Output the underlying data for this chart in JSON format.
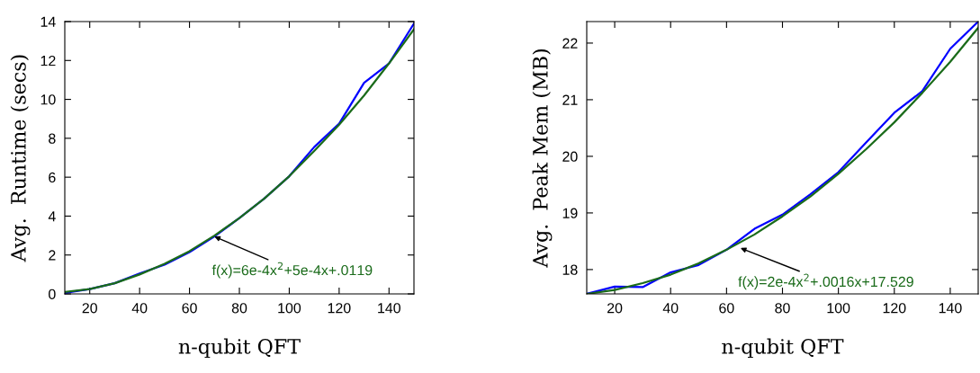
{
  "chart_data": [
    {
      "type": "line",
      "xlabel": "n-qubit QFT",
      "ylabel": "Avg.  Runtime (secs)",
      "x": [
        10,
        20,
        30,
        40,
        50,
        60,
        70,
        80,
        90,
        100,
        110,
        120,
        130,
        140,
        150
      ],
      "series": [
        {
          "color": "#0000ff",
          "values": [
            0.05,
            0.25,
            0.55,
            1.05,
            1.5,
            2.15,
            2.95,
            3.9,
            4.9,
            6.05,
            7.55,
            8.75,
            10.85,
            11.85,
            13.9
          ]
        },
        {
          "color": "#1a6b1a",
          "values": [
            0.1,
            0.25,
            0.55,
            1.0,
            1.55,
            2.2,
            3.0,
            3.9,
            4.9,
            6.05,
            7.35,
            8.7,
            10.2,
            11.85,
            13.6
          ]
        }
      ],
      "xlim": [
        10,
        150
      ],
      "ylim": [
        0,
        14
      ],
      "xticks": [
        20,
        40,
        60,
        80,
        100,
        120,
        140
      ],
      "yticks": [
        0,
        2,
        4,
        6,
        8,
        10,
        12,
        14
      ],
      "annotations": [
        {
          "text": "f(x)=6e-4x$^{2}$+5e-4x+.0119",
          "x": 70,
          "y": 2.95
        }
      ],
      "grid": false,
      "legend": false
    },
    {
      "type": "line",
      "xlabel": "n-qubit QFT",
      "ylabel": "Avg.  Peak Mem (MB)",
      "x": [
        10,
        20,
        30,
        40,
        50,
        60,
        70,
        80,
        90,
        100,
        110,
        120,
        130,
        140,
        150
      ],
      "series": [
        {
          "color": "#0000ff",
          "values": [
            17.57,
            17.7,
            17.69,
            17.95,
            18.08,
            18.35,
            18.72,
            18.97,
            19.33,
            19.72,
            20.25,
            20.77,
            21.15,
            21.9,
            22.38
          ]
        },
        {
          "color": "#1a6b1a",
          "values": [
            17.57,
            17.64,
            17.76,
            17.91,
            18.11,
            18.35,
            18.62,
            18.94,
            19.29,
            19.69,
            20.13,
            20.6,
            21.12,
            21.67,
            22.27
          ]
        }
      ],
      "xlim": [
        10,
        150
      ],
      "ylim": [
        17.57,
        22.38
      ],
      "xticks": [
        20,
        40,
        60,
        80,
        100,
        120,
        140
      ],
      "yticks": [
        18,
        19,
        20,
        21,
        22
      ],
      "annotations": [
        {
          "text": "f(x)=2e-4x$^{2}$+.0016x+17.529",
          "x": 65,
          "y": 18.38
        }
      ],
      "grid": false,
      "legend": false
    }
  ]
}
